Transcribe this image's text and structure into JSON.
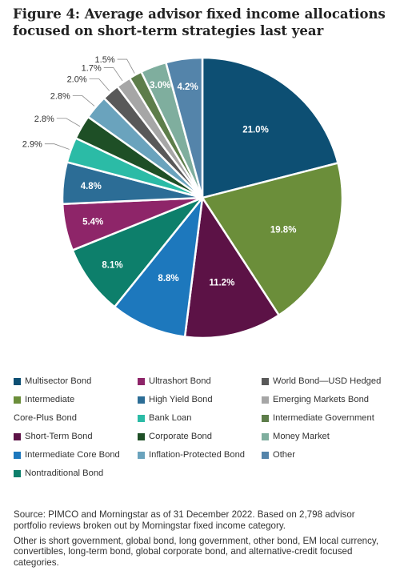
{
  "title": "Figure 4: Average advisor fixed income allocations focused on short-term strategies last year",
  "chart_data": {
    "type": "pie",
    "title": "Figure 4: Average advisor fixed income allocations focused on short-term strategies last year",
    "slices": [
      {
        "label": "Multisector Bond",
        "value": 21.0,
        "display": "21.0%",
        "color": "#0d4f73"
      },
      {
        "label": "Intermediate Core-Plus Bond",
        "value": 19.8,
        "display": "19.8%",
        "color": "#6b8e3a"
      },
      {
        "label": "Short-Term Bond",
        "value": 11.2,
        "display": "11.2%",
        "color": "#5c1246"
      },
      {
        "label": "Intermediate Core Bond",
        "value": 8.8,
        "display": "8.8%",
        "color": "#1d78bd"
      },
      {
        "label": "Nontraditional Bond",
        "value": 8.1,
        "display": "8.1%",
        "color": "#0d7f6b"
      },
      {
        "label": "Ultrashort Bond",
        "value": 5.4,
        "display": "5.4%",
        "color": "#8e2569"
      },
      {
        "label": "High Yield Bond",
        "value": 4.8,
        "display": "4.8%",
        "color": "#2c6d96"
      },
      {
        "label": "Bank Loan",
        "value": 2.9,
        "display": "2.9%",
        "color": "#2bbba6"
      },
      {
        "label": "Corporate Bond",
        "value": 2.8,
        "display": "2.8%",
        "color": "#1e4f26"
      },
      {
        "label": "Inflation-Protected Bond",
        "value": 2.8,
        "display": "2.8%",
        "color": "#6aa3bd"
      },
      {
        "label": "World Bond—USD Hedged",
        "value": 2.0,
        "display": "2.0%",
        "color": "#595959"
      },
      {
        "label": "Emerging Markets Bond",
        "value": 1.7,
        "display": "1.7%",
        "color": "#a6a6a6"
      },
      {
        "label": "Intermediate Government",
        "value": 1.5,
        "display": "1.5%",
        "color": "#5d7d4a"
      },
      {
        "label": "Money Market",
        "value": 3.0,
        "display": "3.0%",
        "color": "#7fae9e"
      },
      {
        "label": "Other",
        "value": 4.2,
        "display": "4.2%",
        "color": "#5484aa"
      }
    ],
    "legend_position": "bottom"
  },
  "legend": [
    {
      "lines": [
        "Multisector Bond"
      ],
      "color": "#0d4f73"
    },
    {
      "lines": [
        "Intermediate",
        "Core-Plus Bond"
      ],
      "color": "#6b8e3a"
    },
    {
      "lines": [
        "Short-Term Bond"
      ],
      "color": "#5c1246"
    },
    {
      "lines": [
        "Intermediate Core Bond"
      ],
      "color": "#1d78bd"
    },
    {
      "lines": [
        "Nontraditional Bond"
      ],
      "color": "#0d7f6b"
    },
    {
      "lines": [
        "Ultrashort Bond"
      ],
      "color": "#8e2569"
    },
    {
      "lines": [
        "High Yield Bond"
      ],
      "color": "#2c6d96"
    },
    {
      "lines": [
        "Bank Loan"
      ],
      "color": "#2bbba6"
    },
    {
      "lines": [
        "Corporate Bond"
      ],
      "color": "#1e4f26"
    },
    {
      "lines": [
        "Inflation-Protected Bond"
      ],
      "color": "#6aa3bd"
    },
    {
      "lines": [
        "World Bond—USD Hedged"
      ],
      "color": "#595959"
    },
    {
      "lines": [
        "Emerging Markets Bond"
      ],
      "color": "#a6a6a6"
    },
    {
      "lines": [
        "Intermediate Government"
      ],
      "color": "#5d7d4a"
    },
    {
      "lines": [
        "Money Market"
      ],
      "color": "#7fae9e"
    },
    {
      "lines": [
        "Other"
      ],
      "color": "#5484aa"
    }
  ],
  "source": [
    "Source: PIMCO and Morningstar as of 31 December 2022. Based on 2,798 advisor portfolio reviews broken out by Morningstar fixed income category.",
    "Other is short government, global bond, long government, other bond, EM local currency, convertibles, long-term bond, global corporate bond, and alternative-credit focused categories."
  ]
}
